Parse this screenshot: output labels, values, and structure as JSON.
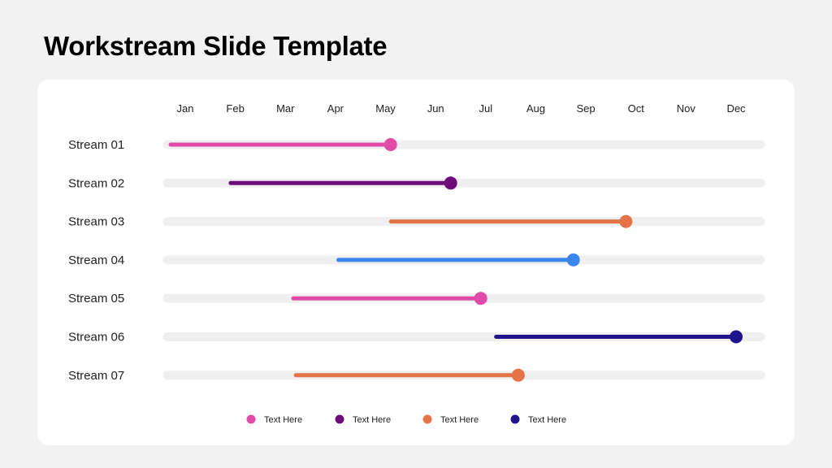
{
  "title": "Workstream Slide Template",
  "chart_data": {
    "type": "gantt",
    "months": [
      "Jan",
      "Feb",
      "Mar",
      "Apr",
      "May",
      "Jun",
      "Jul",
      "Aug",
      "Sep",
      "Oct",
      "Nov",
      "Dec"
    ],
    "streams": [
      {
        "label": "Stream 01",
        "start": 1.0,
        "end": 5.1,
        "color": "#e04ba8"
      },
      {
        "label": "Stream 02",
        "start": 2.2,
        "end": 6.3,
        "color": "#6f0a7a"
      },
      {
        "label": "Stream 03",
        "start": 5.4,
        "end": 9.8,
        "color": "#e4734a"
      },
      {
        "label": "Stream 04",
        "start": 4.35,
        "end": 8.75,
        "color": "#3a86ee"
      },
      {
        "label": "Stream 05",
        "start": 3.45,
        "end": 6.9,
        "color": "#e04ba8"
      },
      {
        "label": "Stream 06",
        "start": 7.5,
        "end": 12.0,
        "color": "#1e148c"
      },
      {
        "label": "Stream 07",
        "start": 3.5,
        "end": 7.65,
        "color": "#e4734a"
      }
    ],
    "track_color": "#efefef",
    "legend": [
      {
        "label": "Text Here",
        "color": "#e04ba8"
      },
      {
        "label": "Text Here",
        "color": "#6f0a7a"
      },
      {
        "label": "Text Here",
        "color": "#e4734a"
      },
      {
        "label": "Text Here",
        "color": "#1e148c"
      }
    ]
  }
}
